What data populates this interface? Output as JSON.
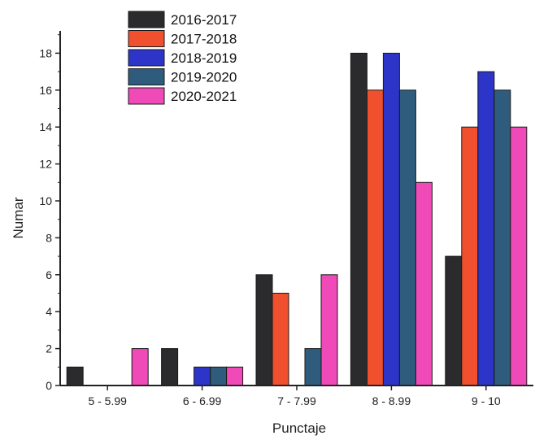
{
  "chart_data": {
    "type": "bar",
    "xlabel": "Punctaje",
    "ylabel": "Numar",
    "ylim": [
      0,
      20
    ],
    "yticks": [
      0,
      2,
      4,
      6,
      8,
      10,
      12,
      14,
      16,
      18
    ],
    "grid": false,
    "legend_position": "top-left",
    "categories": [
      "5 - 5.99",
      "6 - 6.99",
      "7 - 7.99",
      "8 - 8.99",
      "9 - 10"
    ],
    "series": [
      {
        "name": "2016-2017",
        "color": "#2b2b2e",
        "values": [
          1,
          2,
          6,
          18,
          7
        ]
      },
      {
        "name": "2017-2018",
        "color": "#f0502d",
        "values": [
          0,
          0,
          5,
          16,
          14
        ]
      },
      {
        "name": "2018-2019",
        "color": "#2c35c8",
        "values": [
          0,
          1,
          0,
          18,
          17
        ]
      },
      {
        "name": "2019-2020",
        "color": "#2f5c7c",
        "values": [
          0,
          1,
          2,
          16,
          16
        ]
      },
      {
        "name": "2020-2021",
        "color": "#f04ab8",
        "values": [
          2,
          1,
          6,
          11,
          14
        ]
      }
    ]
  }
}
